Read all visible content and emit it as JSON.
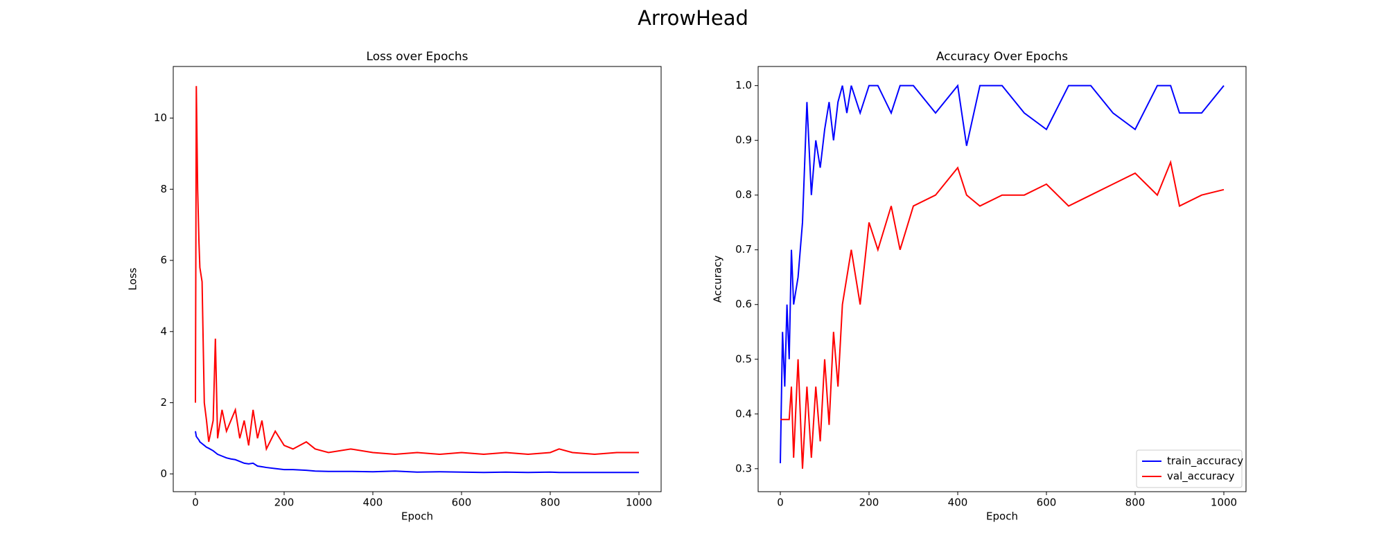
{
  "title": "ArrowHead",
  "chart_data": [
    {
      "type": "line",
      "title": "Loss over Epochs",
      "xlabel": "Epoch",
      "ylabel": "Loss",
      "x": [
        0,
        2,
        5,
        8,
        10,
        15,
        20,
        25,
        30,
        40,
        45,
        50,
        60,
        70,
        80,
        90,
        100,
        110,
        120,
        130,
        140,
        150,
        160,
        180,
        200,
        220,
        250,
        270,
        300,
        350,
        400,
        450,
        500,
        550,
        600,
        650,
        700,
        750,
        800,
        820,
        850,
        900,
        950,
        1000
      ],
      "series": [
        {
          "color": "#0000ff",
          "values": [
            1.2,
            1.05,
            1.0,
            0.95,
            0.9,
            0.85,
            0.8,
            0.75,
            0.72,
            0.65,
            0.6,
            0.55,
            0.5,
            0.45,
            0.42,
            0.4,
            0.35,
            0.3,
            0.28,
            0.3,
            0.22,
            0.2,
            0.18,
            0.15,
            0.12,
            0.12,
            0.1,
            0.08,
            0.07,
            0.07,
            0.06,
            0.08,
            0.05,
            0.06,
            0.05,
            0.04,
            0.05,
            0.04,
            0.05,
            0.04,
            0.04,
            0.04,
            0.04,
            0.04
          ]
        },
        {
          "color": "#ff0000",
          "values": [
            2.0,
            10.9,
            8.0,
            6.5,
            5.8,
            5.4,
            2.0,
            1.5,
            0.9,
            1.5,
            3.8,
            1.0,
            1.8,
            1.2,
            1.5,
            1.8,
            1.0,
            1.5,
            0.8,
            1.8,
            1.0,
            1.5,
            0.7,
            1.2,
            0.8,
            0.7,
            0.9,
            0.7,
            0.6,
            0.7,
            0.6,
            0.55,
            0.6,
            0.55,
            0.6,
            0.55,
            0.6,
            0.55,
            0.6,
            0.7,
            0.6,
            0.55,
            0.6,
            0.6
          ]
        }
      ],
      "xlim": [
        -50,
        1050
      ],
      "xticks": [
        0,
        200,
        400,
        600,
        800,
        1000
      ],
      "ylim": [
        -0.5,
        11.45
      ],
      "yticks": [
        0,
        2,
        4,
        6,
        8,
        10
      ]
    },
    {
      "type": "line",
      "title": "Accuracy Over Epochs",
      "xlabel": "Epoch",
      "ylabel": "Accuracy",
      "x": [
        0,
        5,
        10,
        15,
        20,
        25,
        30,
        40,
        50,
        60,
        70,
        80,
        90,
        100,
        110,
        120,
        130,
        140,
        150,
        160,
        180,
        200,
        220,
        250,
        270,
        300,
        350,
        400,
        420,
        450,
        500,
        550,
        600,
        650,
        700,
        750,
        800,
        850,
        880,
        900,
        950,
        1000
      ],
      "series": [
        {
          "name": "train_accuracy",
          "color": "#0000ff",
          "values": [
            0.31,
            0.55,
            0.45,
            0.6,
            0.5,
            0.7,
            0.6,
            0.65,
            0.75,
            0.97,
            0.8,
            0.9,
            0.85,
            0.92,
            0.97,
            0.9,
            0.97,
            1.0,
            0.95,
            1.0,
            0.95,
            1.0,
            1.0,
            0.95,
            1.0,
            1.0,
            0.95,
            1.0,
            0.89,
            1.0,
            1.0,
            0.95,
            0.92,
            1.0,
            1.0,
            0.95,
            0.92,
            1.0,
            1.0,
            0.95,
            0.95,
            1.0
          ]
        },
        {
          "name": "val_accuracy",
          "color": "#ff0000",
          "values": [
            0.39,
            0.39,
            0.39,
            0.39,
            0.39,
            0.45,
            0.32,
            0.5,
            0.3,
            0.45,
            0.32,
            0.45,
            0.35,
            0.5,
            0.38,
            0.55,
            0.45,
            0.6,
            0.65,
            0.7,
            0.6,
            0.75,
            0.7,
            0.78,
            0.7,
            0.78,
            0.8,
            0.85,
            0.8,
            0.78,
            0.8,
            0.8,
            0.82,
            0.78,
            0.8,
            0.82,
            0.84,
            0.8,
            0.86,
            0.78,
            0.8,
            0.81
          ]
        }
      ],
      "xlim": [
        -50,
        1050
      ],
      "xticks": [
        0,
        200,
        400,
        600,
        800,
        1000
      ],
      "ylim": [
        0.258,
        1.035
      ],
      "yticks": [
        0.3,
        0.4,
        0.5,
        0.6,
        0.7,
        0.8,
        0.9,
        {
          "value": 1,
          "label": "1.0"
        }
      ],
      "legend": "lower right"
    }
  ]
}
